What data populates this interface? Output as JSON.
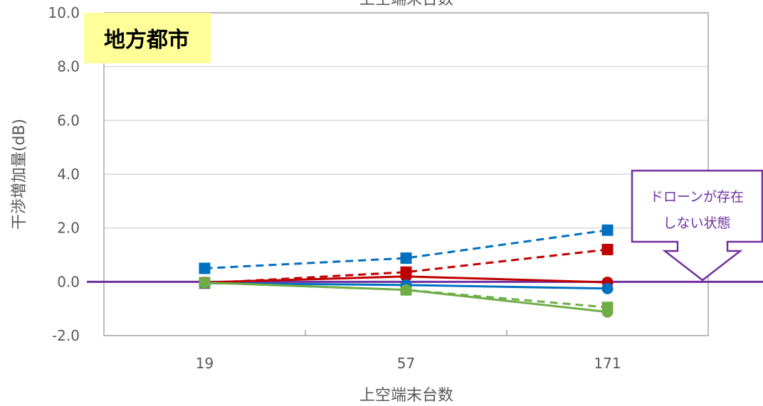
{
  "colors": {
    "blue": "#0070c0",
    "red": "#c00000",
    "green": "#70ad47",
    "purple": "#7030a0",
    "badge_bg": "#ffff99",
    "grid": "#d9d9d9",
    "axis_text": "#595959"
  },
  "badge": {
    "label": "地方都市"
  },
  "callout": {
    "line1": "ドローンが存在",
    "line2": "しない状態"
  },
  "chart_data": {
    "type": "line",
    "title": "上空端末台数",
    "xlabel": "上空端末台数",
    "ylabel": "干渉増加量(dB)",
    "categories": [
      "19",
      "57",
      "171"
    ],
    "ylim": [
      -2.0,
      10.0
    ],
    "yticks": [
      "10.0",
      "8.0",
      "6.0",
      "4.0",
      "2.0",
      "0.0",
      "-2.0"
    ],
    "grid": true,
    "baseline": 0.0,
    "series": [
      {
        "color": "#0070c0",
        "dash": true,
        "marker": "square",
        "values": [
          0.5,
          0.88,
          1.92
        ]
      },
      {
        "color": "#c00000",
        "dash": true,
        "marker": "square",
        "values": [
          -0.05,
          0.36,
          1.2
        ]
      },
      {
        "color": "#70ad47",
        "dash": true,
        "marker": "square",
        "values": [
          -0.03,
          -0.3,
          -0.95
        ]
      },
      {
        "color": "#c00000",
        "dash": false,
        "marker": "circle",
        "values": [
          -0.02,
          0.2,
          -0.02
        ]
      },
      {
        "color": "#0070c0",
        "dash": false,
        "marker": "circle",
        "values": [
          -0.05,
          -0.12,
          -0.25
        ]
      },
      {
        "color": "#70ad47",
        "dash": false,
        "marker": "circle",
        "values": [
          -0.03,
          -0.3,
          -1.12
        ]
      }
    ]
  }
}
